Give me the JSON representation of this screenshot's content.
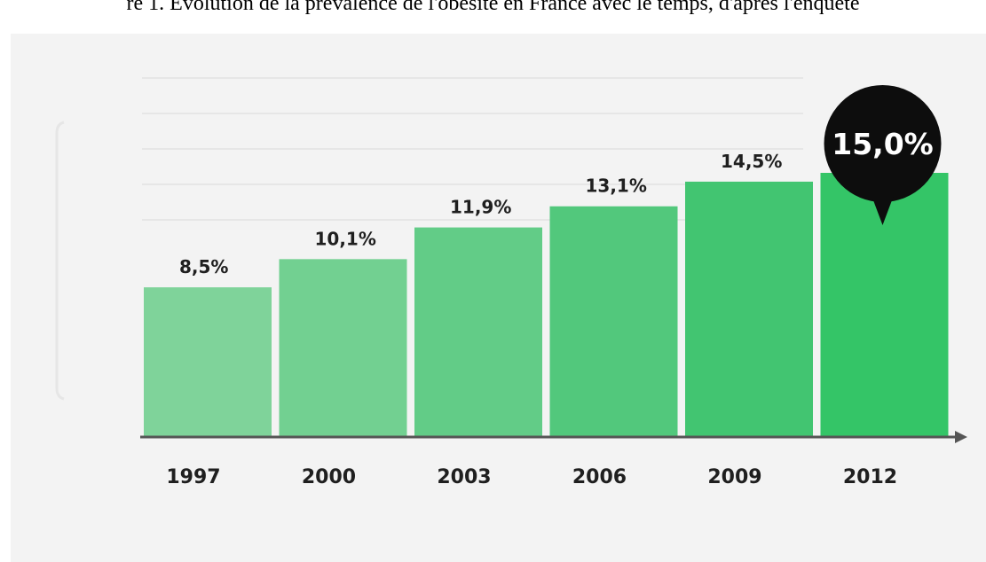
{
  "caption": "re 1. Évolution de la prévalence de l'obésité en France avec le temps, d'après l'enquête",
  "colors": {
    "background_panel": "#f3f3f3",
    "gridline": "#dadada",
    "axis": "#555555",
    "bubble": "#0d0d0d",
    "bars": [
      "#7fd39a",
      "#72d091",
      "#62cc87",
      "#52c87c",
      "#42c571",
      "#34c567"
    ]
  },
  "chart_data": {
    "type": "bar",
    "title": "",
    "xlabel": "",
    "ylabel": "",
    "categories": [
      "1997",
      "2000",
      "2003",
      "2006",
      "2009",
      "2012"
    ],
    "values": [
      8.5,
      10.1,
      11.9,
      13.1,
      14.5,
      15.0
    ],
    "value_labels": [
      "8,5%",
      "10,1%",
      "11,9%",
      "13,1%",
      "14,5%",
      "15,0%"
    ],
    "highlight": {
      "category": "2012",
      "label": "15,0%"
    },
    "ylim": [
      0,
      22.5
    ],
    "grid": true,
    "legend": "none"
  }
}
